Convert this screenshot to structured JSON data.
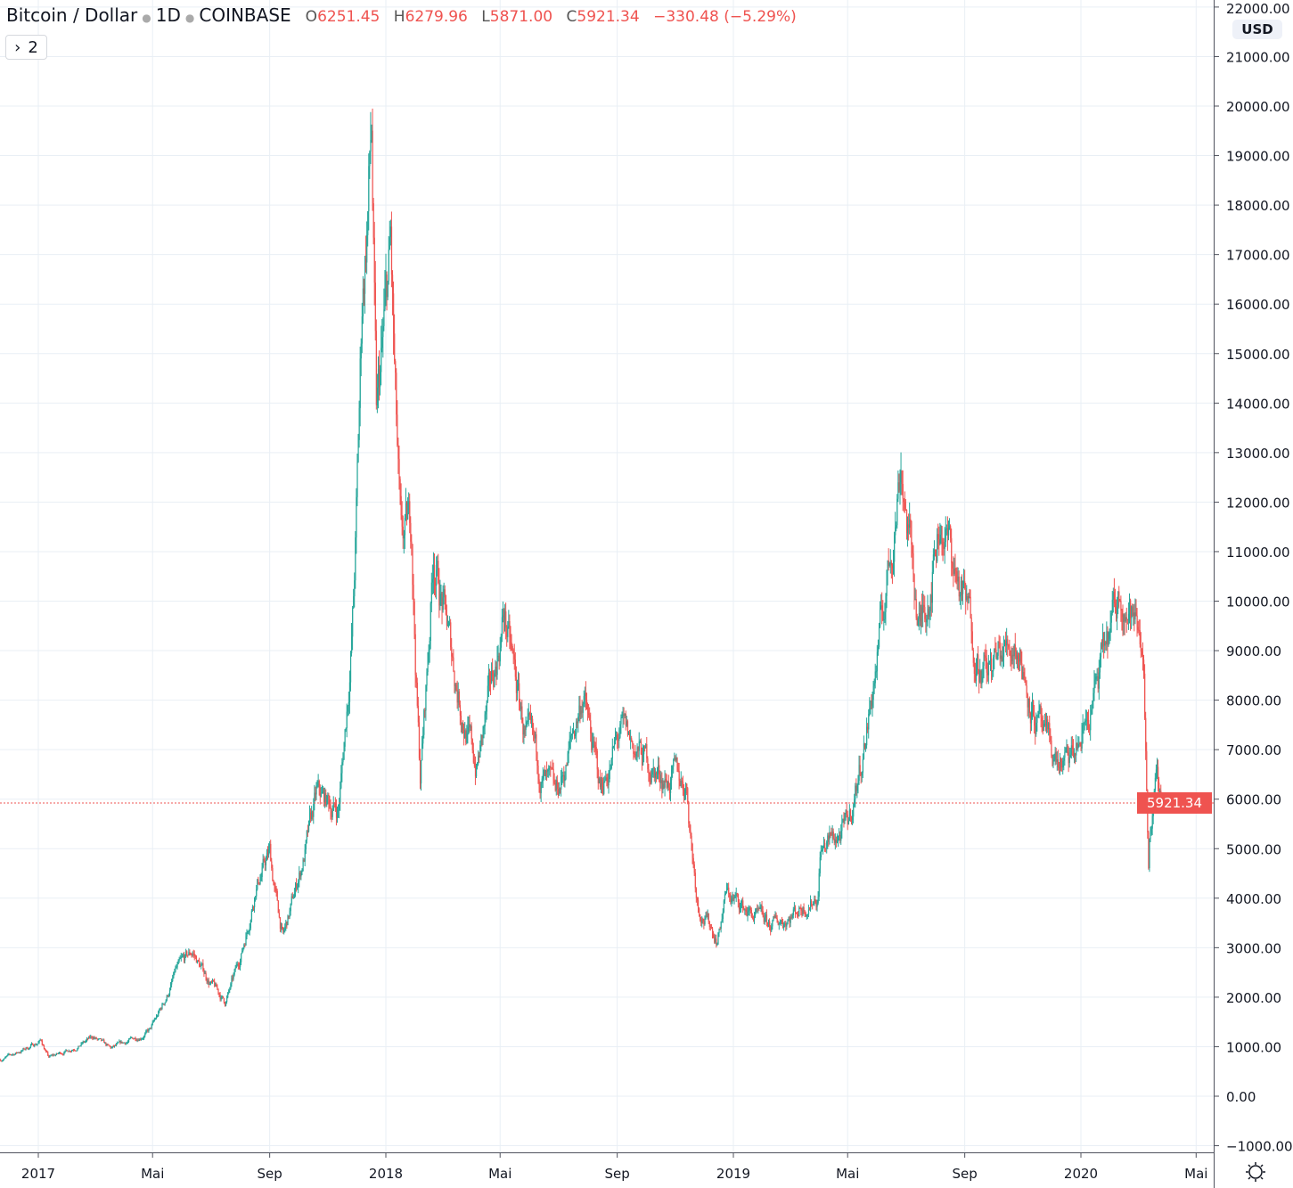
{
  "header": {
    "symbol": "Bitcoin / Dollar",
    "interval": "1D",
    "exchange": "COINBASE",
    "open_key": "O",
    "open": "6251.45",
    "high_key": "H",
    "high": "6279.96",
    "low_key": "L",
    "low": "5871.00",
    "close_key": "C",
    "close": "5921.34",
    "change": "−330.48 (−5.29%)",
    "collapse_count": "2"
  },
  "currency": "USD",
  "last_price_label": "5921.34",
  "colors": {
    "up": "#26a69a",
    "down": "#ef5350",
    "grid": "#e9eff5",
    "last_price": "#ef5350"
  },
  "icons": {
    "collapse": "chevron-right-icon",
    "settings": "gear-icon"
  },
  "chart_data": {
    "type": "candlestick",
    "title": "Bitcoin / Dollar · 1D · COINBASE",
    "ylim": [
      -1000,
      22000
    ],
    "y_ticks": [
      "22000.00",
      "21000.00",
      "20000.00",
      "19000.00",
      "18000.00",
      "17000.00",
      "16000.00",
      "15000.00",
      "14000.00",
      "13000.00",
      "12000.00",
      "11000.00",
      "10000.00",
      "9000.00",
      "8000.00",
      "7000.00",
      "6000.00",
      "5000.00",
      "4000.00",
      "3000.00",
      "2000.00",
      "1000.00",
      "0.00",
      "−1000.00"
    ],
    "x_ticks": [
      {
        "label": "2017",
        "date": "2017-01-01"
      },
      {
        "label": "Mai",
        "date": "2017-05-01"
      },
      {
        "label": "Sep",
        "date": "2017-09-01"
      },
      {
        "label": "2018",
        "date": "2018-01-01"
      },
      {
        "label": "Mai",
        "date": "2018-05-01"
      },
      {
        "label": "Sep",
        "date": "2018-09-01"
      },
      {
        "label": "2019",
        "date": "2019-01-01"
      },
      {
        "label": "Mai",
        "date": "2019-05-01"
      },
      {
        "label": "Sep",
        "date": "2019-09-01"
      },
      {
        "label": "2020",
        "date": "2020-01-01"
      },
      {
        "label": "Mai",
        "date": "2020-05-01"
      }
    ],
    "grid": true,
    "last_close": 5921.34,
    "approx_close_path": [
      [
        "2016-11-22",
        740
      ],
      [
        "2017-01-04",
        1130
      ],
      [
        "2017-01-12",
        780
      ],
      [
        "2017-02-28",
        1190
      ],
      [
        "2017-03-18",
        950
      ],
      [
        "2017-04-28",
        1330
      ],
      [
        "2017-05-25",
        2500
      ],
      [
        "2017-06-12",
        2900
      ],
      [
        "2017-07-16",
        1900
      ],
      [
        "2017-08-01",
        2800
      ],
      [
        "2017-08-17",
        4300
      ],
      [
        "2017-09-01",
        4900
      ],
      [
        "2017-09-15",
        3200
      ],
      [
        "2017-10-01",
        4400
      ],
      [
        "2017-10-20",
        6000
      ],
      [
        "2017-11-12",
        5800
      ],
      [
        "2017-11-28",
        10000
      ],
      [
        "2017-12-07",
        16000
      ],
      [
        "2017-12-17",
        19500
      ],
      [
        "2017-12-22",
        13500
      ],
      [
        "2018-01-06",
        17000
      ],
      [
        "2018-01-17",
        10800
      ],
      [
        "2018-01-28",
        11500
      ],
      [
        "2018-02-06",
        6500
      ],
      [
        "2018-02-20",
        11100
      ],
      [
        "2018-03-10",
        9000
      ],
      [
        "2018-04-06",
        6600
      ],
      [
        "2018-05-05",
        9800
      ],
      [
        "2018-05-28",
        7200
      ],
      [
        "2018-06-28",
        5900
      ],
      [
        "2018-07-27",
        8200
      ],
      [
        "2018-08-14",
        6200
      ],
      [
        "2018-09-04",
        7300
      ],
      [
        "2018-10-15",
        6500
      ],
      [
        "2018-11-13",
        6300
      ],
      [
        "2018-11-25",
        3900
      ],
      [
        "2018-12-15",
        3200
      ],
      [
        "2018-12-24",
        4100
      ],
      [
        "2019-02-08",
        3400
      ],
      [
        "2019-03-31",
        4100
      ],
      [
        "2019-04-02",
        5000
      ],
      [
        "2019-05-01",
        5400
      ],
      [
        "2019-05-30",
        8600
      ],
      [
        "2019-06-26",
        13000
      ],
      [
        "2019-07-16",
        9400
      ],
      [
        "2019-08-06",
        11800
      ],
      [
        "2019-09-24",
        8500
      ],
      [
        "2019-10-25",
        9300
      ],
      [
        "2019-11-25",
        7000
      ],
      [
        "2019-12-18",
        6600
      ],
      [
        "2020-01-01",
        7200
      ],
      [
        "2020-02-13",
        10300
      ],
      [
        "2020-03-07",
        9000
      ],
      [
        "2020-03-12",
        4800
      ],
      [
        "2020-03-13",
        5500
      ],
      [
        "2020-03-20",
        6200
      ],
      [
        "2020-03-26",
        5921.34
      ]
    ]
  }
}
